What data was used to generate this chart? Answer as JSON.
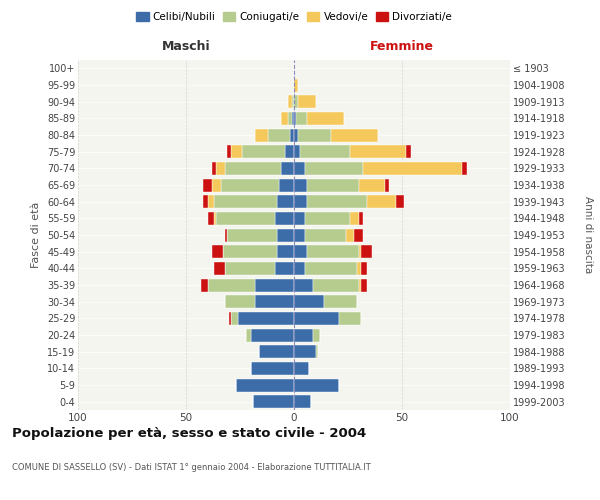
{
  "age_groups": [
    "0-4",
    "5-9",
    "10-14",
    "15-19",
    "20-24",
    "25-29",
    "30-34",
    "35-39",
    "40-44",
    "45-49",
    "50-54",
    "55-59",
    "60-64",
    "65-69",
    "70-74",
    "75-79",
    "80-84",
    "85-89",
    "90-94",
    "95-99",
    "100+"
  ],
  "birth_years": [
    "1999-2003",
    "1994-1998",
    "1989-1993",
    "1984-1988",
    "1979-1983",
    "1974-1978",
    "1969-1973",
    "1964-1968",
    "1959-1963",
    "1954-1958",
    "1949-1953",
    "1944-1948",
    "1939-1943",
    "1934-1938",
    "1929-1933",
    "1924-1928",
    "1919-1923",
    "1914-1918",
    "1909-1913",
    "1904-1908",
    "≤ 1903"
  ],
  "maschi": {
    "celibi": [
      19,
      27,
      20,
      16,
      20,
      26,
      18,
      18,
      9,
      8,
      8,
      9,
      8,
      7,
      6,
      4,
      2,
      1,
      0,
      0,
      0
    ],
    "coniugati": [
      0,
      0,
      0,
      0,
      2,
      3,
      14,
      22,
      23,
      25,
      23,
      27,
      29,
      27,
      26,
      20,
      10,
      2,
      1,
      0,
      0
    ],
    "vedovi": [
      0,
      0,
      0,
      0,
      0,
      0,
      0,
      0,
      0,
      0,
      0,
      1,
      3,
      4,
      4,
      5,
      6,
      3,
      2,
      0,
      0
    ],
    "divorziati": [
      0,
      0,
      0,
      0,
      0,
      1,
      0,
      3,
      5,
      5,
      1,
      3,
      2,
      4,
      2,
      2,
      0,
      0,
      0,
      0,
      0
    ]
  },
  "femmine": {
    "nubili": [
      8,
      21,
      7,
      10,
      9,
      21,
      14,
      9,
      5,
      6,
      5,
      5,
      6,
      6,
      5,
      3,
      2,
      1,
      0,
      0,
      0
    ],
    "coniugate": [
      0,
      0,
      0,
      1,
      3,
      10,
      15,
      21,
      24,
      24,
      19,
      21,
      28,
      24,
      27,
      23,
      15,
      5,
      2,
      0,
      0
    ],
    "vedove": [
      0,
      0,
      0,
      0,
      0,
      0,
      0,
      1,
      2,
      1,
      4,
      4,
      13,
      12,
      46,
      26,
      22,
      17,
      8,
      2,
      0
    ],
    "divorziate": [
      0,
      0,
      0,
      0,
      0,
      0,
      0,
      3,
      3,
      5,
      4,
      2,
      4,
      2,
      2,
      2,
      0,
      0,
      0,
      0,
      0
    ]
  },
  "colors": {
    "celibi": "#3d6da8",
    "coniugati": "#b5cc8e",
    "vedovi": "#f5c85c",
    "divorziati": "#cc1111"
  },
  "xlim": 100,
  "title": "Popolazione per età, sesso e stato civile - 2004",
  "subtitle": "COMUNE DI SASSELLO (SV) - Dati ISTAT 1° gennaio 2004 - Elaborazione TUTTITALIA.IT",
  "ylabel_left": "Fasce di età",
  "ylabel_right": "Anni di nascita",
  "xlabel_left": "Maschi",
  "xlabel_right": "Femmine",
  "bg_color": "#f5f5f0"
}
